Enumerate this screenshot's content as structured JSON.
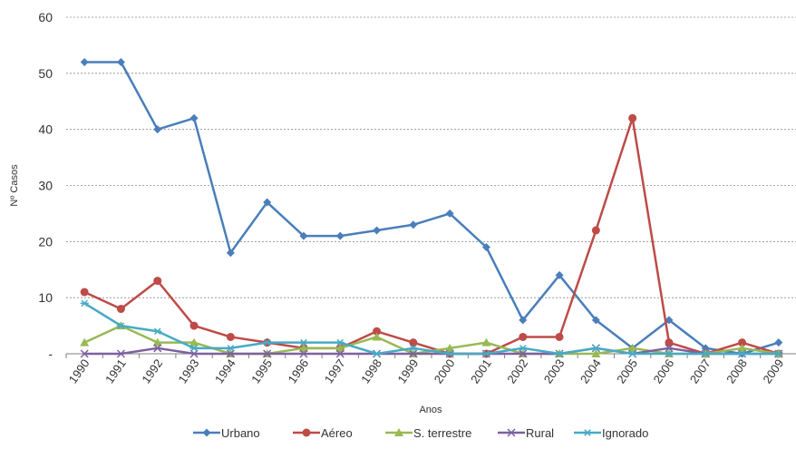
{
  "chart_data": {
    "type": "line",
    "title": "",
    "xlabel": "Anos",
    "ylabel": "Nº Casos",
    "ylim": [
      0,
      60
    ],
    "yticks": [
      0,
      10,
      20,
      30,
      40,
      50,
      60
    ],
    "ytick_labels": [
      "-",
      "10",
      "20",
      "30",
      "40",
      "50",
      "60"
    ],
    "grid": true,
    "legend_position": "bottom",
    "categories": [
      "1990",
      "1991",
      "1992",
      "1993",
      "1994",
      "1995",
      "1996",
      "1997",
      "1998",
      "1999",
      "2000",
      "2001",
      "2002",
      "2003",
      "2004",
      "2005",
      "2006",
      "2007",
      "2008",
      "2009"
    ],
    "series": [
      {
        "name": "Urbano",
        "color": "#4a7ebb",
        "marker": "diamond",
        "values": [
          52,
          52,
          40,
          42,
          18,
          27,
          21,
          21,
          22,
          23,
          25,
          19,
          6,
          14,
          6,
          1,
          6,
          1,
          0,
          2
        ]
      },
      {
        "name": "Aéreo",
        "color": "#be4b48",
        "marker": "circle",
        "values": [
          11,
          8,
          13,
          5,
          3,
          2,
          1,
          1,
          4,
          2,
          0,
          0,
          3,
          3,
          22,
          42,
          2,
          0,
          2,
          0
        ]
      },
      {
        "name": "S. terrestre",
        "color": "#98b954",
        "marker": "triangle",
        "values": [
          2,
          5,
          2,
          2,
          0,
          0,
          1,
          1,
          3,
          0,
          1,
          2,
          0,
          0,
          0,
          1,
          0,
          0,
          1,
          0
        ]
      },
      {
        "name": "Rural",
        "color": "#7d60a0",
        "marker": "x",
        "values": [
          0,
          0,
          1,
          0,
          0,
          0,
          0,
          0,
          0,
          0,
          0,
          0,
          0,
          0,
          1,
          0,
          1,
          0,
          0,
          0
        ]
      },
      {
        "name": "Ignorado",
        "color": "#46aac5",
        "marker": "star",
        "values": [
          9,
          5,
          4,
          1,
          1,
          2,
          2,
          2,
          0,
          1,
          0,
          0,
          1,
          0,
          1,
          0,
          0,
          0,
          0,
          0
        ]
      }
    ]
  }
}
